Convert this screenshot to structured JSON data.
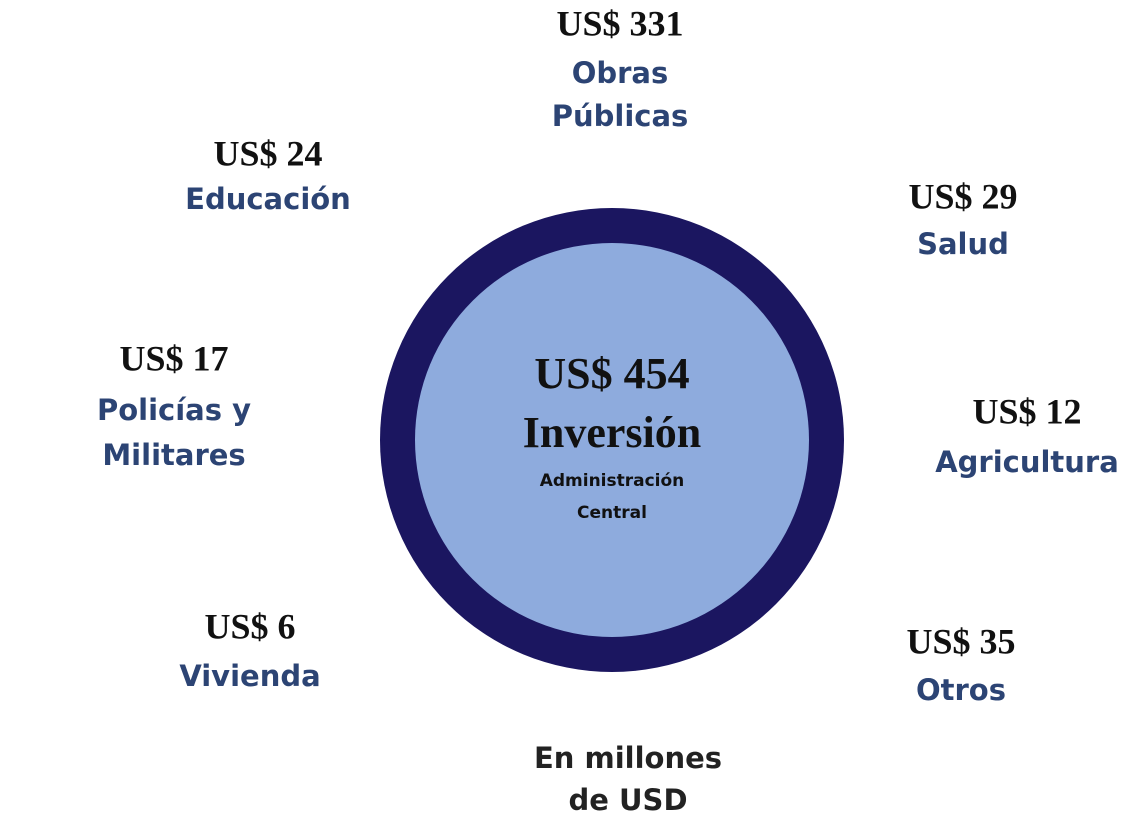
{
  "center": {
    "amount": "US$ 454",
    "title": "Inversión",
    "subtitle_lines": [
      "Administración",
      "Central"
    ]
  },
  "items": [
    {
      "amount": "US$ 331",
      "name_lines": [
        "Obras",
        "Públicas"
      ]
    },
    {
      "amount": "US$ 24",
      "name_lines": [
        "Educación"
      ]
    },
    {
      "amount": "US$ 29",
      "name_lines": [
        "Salud"
      ]
    },
    {
      "amount": "US$ 17",
      "name_lines": [
        "Policías y",
        "Militares"
      ]
    },
    {
      "amount": "US$ 12",
      "name_lines": [
        "Agricultura"
      ]
    },
    {
      "amount": "US$ 6",
      "name_lines": [
        "Vivienda"
      ]
    },
    {
      "amount": "US$ 35",
      "name_lines": [
        "Otros"
      ]
    }
  ],
  "footer_lines": [
    "En millones",
    "de USD"
  ]
}
